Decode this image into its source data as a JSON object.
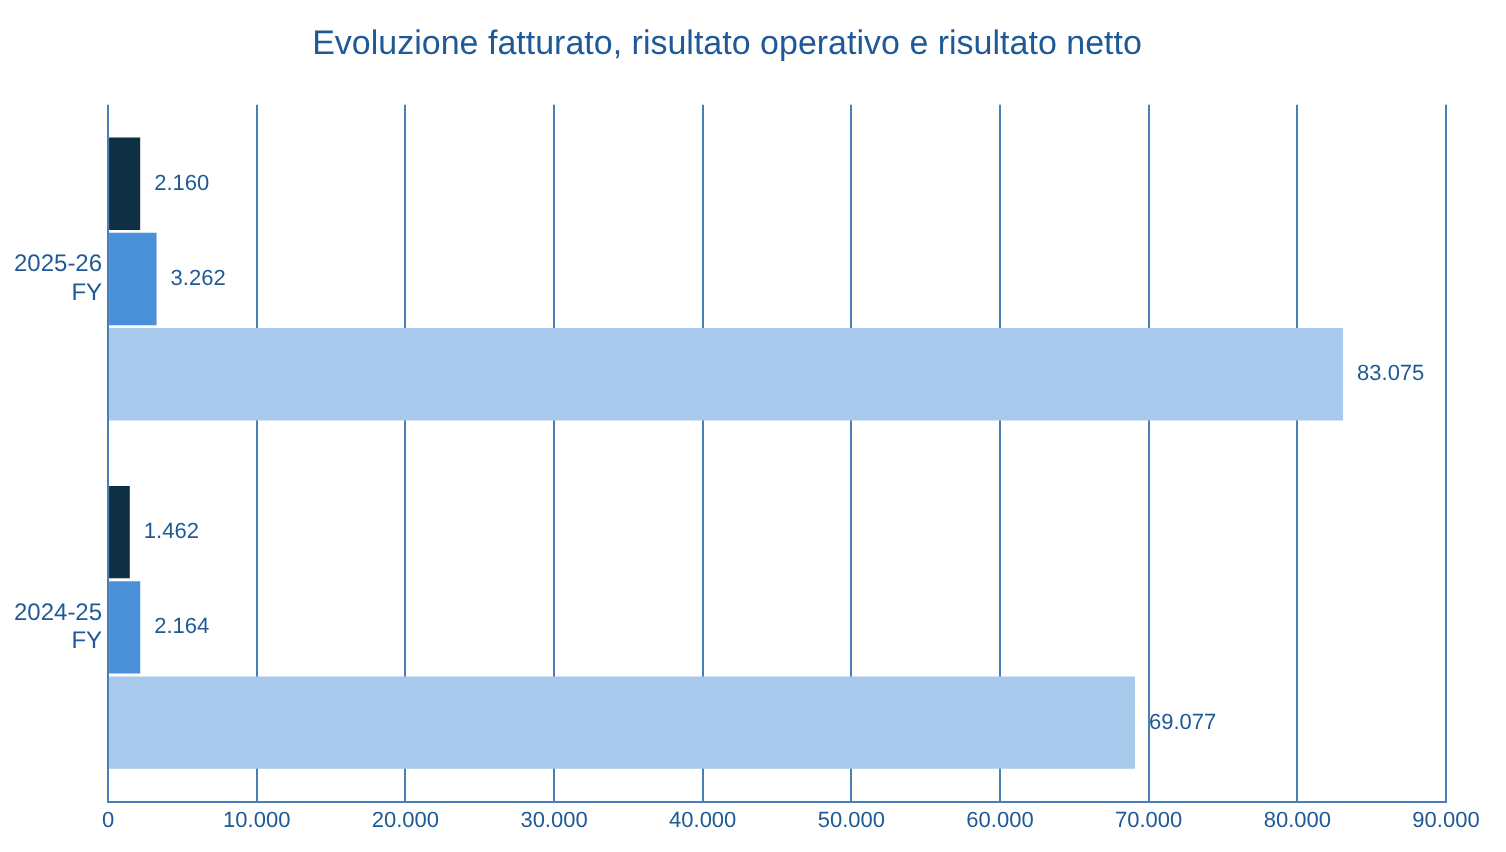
{
  "chart_data": {
    "type": "bar",
    "orientation": "horizontal",
    "title": "Evoluzione fatturato, risultato operativo e risultato netto",
    "categories": [
      "2025-26 FY",
      "2024-25 FY"
    ],
    "series": [
      {
        "color": "#0e2f44",
        "values": [
          2160,
          1462
        ],
        "value_labels": [
          "2.160",
          "1.462"
        ]
      },
      {
        "color": "#4a90d9",
        "values": [
          3262,
          2164
        ],
        "value_labels": [
          "3.262",
          "2.164"
        ]
      },
      {
        "color": "#a6c9ec",
        "values": [
          83075,
          69077
        ],
        "value_labels": [
          "83.075",
          "69.077"
        ]
      }
    ],
    "xlim": [
      0,
      90000
    ],
    "xticks": [
      0,
      {
        "value": 10000,
        "label": "10.000"
      },
      {
        "value": 20000,
        "label": "20.000"
      },
      {
        "value": 30000,
        "label": "30.000"
      },
      {
        "value": 40000,
        "label": "40.000"
      },
      {
        "value": 50000,
        "label": "50.000"
      },
      {
        "value": 60000,
        "label": "60.000"
      },
      {
        "value": 70000,
        "label": "70.000"
      },
      {
        "value": 80000,
        "label": "80.000"
      },
      {
        "value": 90000,
        "label": "90.000"
      }
    ],
    "grid": "x",
    "legend": false
  }
}
